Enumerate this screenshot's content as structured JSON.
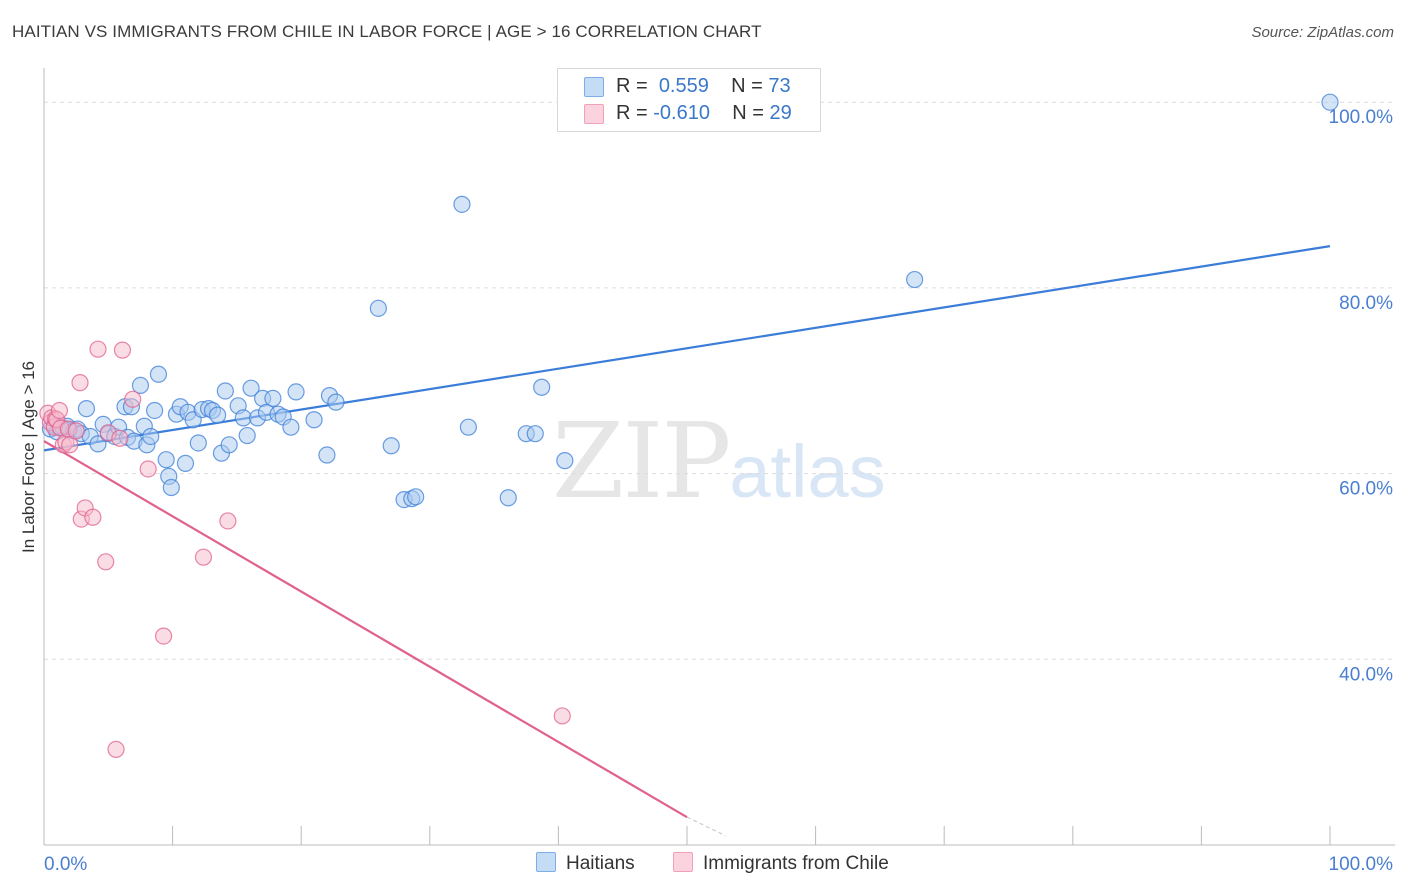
{
  "title": "HAITIAN VS IMMIGRANTS FROM CHILE IN LABOR FORCE | AGE > 16 CORRELATION CHART",
  "source": "Source: ZipAtlas.com",
  "watermark": {
    "part1": "ZIP",
    "part2": "atlas"
  },
  "legend": {
    "rows": [
      {
        "r_label": "R =",
        "r_value": "0.559",
        "n_label": "N =",
        "n_value": "73",
        "color": "#7eaee8",
        "fill": "#c5dcf5"
      },
      {
        "r_label": "R =",
        "r_value": "-0.610",
        "n_label": "N =",
        "n_value": "29",
        "color": "#f0a0b8",
        "fill": "#fbd3de"
      }
    ]
  },
  "bottom_legend": {
    "series1": "Haitians",
    "series2": "Immigrants from Chile"
  },
  "chart_data": {
    "type": "scatter",
    "title": "HAITIAN VS IMMIGRANTS FROM CHILE IN LABOR FORCE | AGE > 16 CORRELATION CHART",
    "xlabel": "",
    "ylabel": "In Labor Force | Age > 16",
    "xlim": [
      0,
      100
    ],
    "ylim": [
      20,
      102.5
    ],
    "x_tick_labels": [
      "0.0%",
      "100.0%"
    ],
    "y_ticks": [
      40,
      60,
      80,
      100
    ],
    "y_tick_labels": [
      "40.0%",
      "60.0%",
      "80.0%",
      "100.0%"
    ],
    "series": [
      {
        "name": "Haitians",
        "color": "#3b7dd8",
        "fill": "#a9c9f0",
        "R": 0.559,
        "N": 73,
        "trend": {
          "x": [
            0,
            100
          ],
          "y": [
            62.5,
            84.5
          ]
        },
        "points": [
          [
            0.5,
            64.8
          ],
          [
            0.8,
            65.2
          ],
          [
            1.0,
            64.5
          ],
          [
            1.2,
            65.0
          ],
          [
            1.5,
            64.9
          ],
          [
            1.8,
            65.1
          ],
          [
            2.0,
            64.7
          ],
          [
            2.3,
            64.6
          ],
          [
            2.6,
            64.8
          ],
          [
            2.9,
            64.3
          ],
          [
            3.3,
            67.0
          ],
          [
            3.6,
            64.0
          ],
          [
            4.2,
            63.2
          ],
          [
            4.6,
            65.3
          ],
          [
            5.0,
            64.3
          ],
          [
            5.5,
            64.0
          ],
          [
            5.8,
            65.0
          ],
          [
            6.3,
            67.2
          ],
          [
            6.5,
            63.9
          ],
          [
            6.8,
            67.2
          ],
          [
            7.0,
            63.5
          ],
          [
            7.5,
            69.5
          ],
          [
            7.8,
            65.1
          ],
          [
            8.0,
            63.1
          ],
          [
            8.3,
            64.0
          ],
          [
            8.6,
            66.8
          ],
          [
            8.9,
            70.7
          ],
          [
            9.5,
            61.5
          ],
          [
            9.7,
            59.7
          ],
          [
            9.9,
            58.5
          ],
          [
            10.3,
            66.4
          ],
          [
            10.6,
            67.2
          ],
          [
            11.0,
            61.1
          ],
          [
            11.2,
            66.6
          ],
          [
            11.6,
            65.8
          ],
          [
            12.0,
            63.3
          ],
          [
            12.3,
            66.9
          ],
          [
            12.8,
            67.0
          ],
          [
            13.1,
            66.8
          ],
          [
            13.5,
            66.3
          ],
          [
            13.8,
            62.2
          ],
          [
            14.1,
            68.9
          ],
          [
            14.4,
            63.1
          ],
          [
            15.1,
            67.3
          ],
          [
            15.5,
            66.0
          ],
          [
            15.8,
            64.1
          ],
          [
            16.1,
            69.2
          ],
          [
            16.6,
            66.0
          ],
          [
            17.0,
            68.1
          ],
          [
            17.3,
            66.6
          ],
          [
            17.8,
            68.1
          ],
          [
            18.2,
            66.4
          ],
          [
            18.6,
            66.1
          ],
          [
            19.2,
            65.0
          ],
          [
            19.6,
            68.8
          ],
          [
            21.0,
            65.8
          ],
          [
            22.0,
            62.0
          ],
          [
            22.2,
            68.4
          ],
          [
            22.7,
            67.7
          ],
          [
            26.0,
            77.8
          ],
          [
            27.0,
            63.0
          ],
          [
            28.0,
            57.2
          ],
          [
            28.6,
            57.3
          ],
          [
            28.9,
            57.5
          ],
          [
            32.5,
            89.0
          ],
          [
            33.0,
            65.0
          ],
          [
            36.1,
            57.4
          ],
          [
            37.5,
            64.3
          ],
          [
            38.2,
            64.3
          ],
          [
            38.7,
            69.3
          ],
          [
            40.5,
            61.4
          ],
          [
            67.7,
            80.9
          ],
          [
            100.0,
            100.0
          ]
        ]
      },
      {
        "name": "Immigrants from Chile",
        "color": "#e0608e",
        "fill": "#f6b9cb",
        "R": -0.61,
        "N": 29,
        "trend": {
          "x": [
            0,
            50
          ],
          "y": [
            63.5,
            23.0
          ]
        },
        "trend_ext": {
          "x": [
            50,
            53
          ],
          "y": [
            23.0,
            21.0
          ]
        },
        "points": [
          [
            0.3,
            66.5
          ],
          [
            0.5,
            65.5
          ],
          [
            0.6,
            66.0
          ],
          [
            0.8,
            65.0
          ],
          [
            0.9,
            65.9
          ],
          [
            1.0,
            65.8
          ],
          [
            1.2,
            66.8
          ],
          [
            1.3,
            64.9
          ],
          [
            1.5,
            63.1
          ],
          [
            1.7,
            63.4
          ],
          [
            1.9,
            64.8
          ],
          [
            2.0,
            63.1
          ],
          [
            2.5,
            64.6
          ],
          [
            2.8,
            69.8
          ],
          [
            2.9,
            55.1
          ],
          [
            3.2,
            56.3
          ],
          [
            3.8,
            55.3
          ],
          [
            4.2,
            73.4
          ],
          [
            4.8,
            50.5
          ],
          [
            5.0,
            64.4
          ],
          [
            5.6,
            30.3
          ],
          [
            5.9,
            63.8
          ],
          [
            6.1,
            73.3
          ],
          [
            6.9,
            68.0
          ],
          [
            8.1,
            60.5
          ],
          [
            9.3,
            42.5
          ],
          [
            12.4,
            51.0
          ],
          [
            14.3,
            54.9
          ],
          [
            40.3,
            33.9
          ]
        ]
      }
    ]
  }
}
